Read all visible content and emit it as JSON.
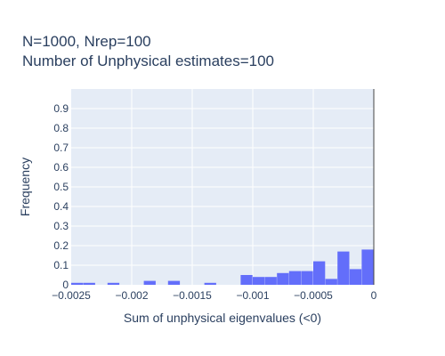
{
  "chart_data": {
    "type": "bar",
    "subtype": "histogram",
    "title_lines": [
      "N=1000, Nrep=100",
      "Number of Unphysical estimates=100"
    ],
    "xlabel": "Sum of unphysical eigenvalues (<0)",
    "ylabel": "Frequency",
    "xlim": [
      -0.0025,
      0
    ],
    "ylim": [
      0,
      1
    ],
    "x_ticks": [
      {
        "value": -0.0025,
        "label": "−0.0025"
      },
      {
        "value": -0.002,
        "label": "−0.002"
      },
      {
        "value": -0.0015,
        "label": "−0.0015"
      },
      {
        "value": -0.001,
        "label": "−0.001"
      },
      {
        "value": -0.0005,
        "label": "−0.0005"
      },
      {
        "value": 0,
        "label": "0"
      }
    ],
    "y_ticks": [
      {
        "value": 0,
        "label": "0"
      },
      {
        "value": 0.1,
        "label": "0.1"
      },
      {
        "value": 0.2,
        "label": "0.2"
      },
      {
        "value": 0.3,
        "label": "0.3"
      },
      {
        "value": 0.4,
        "label": "0.4"
      },
      {
        "value": 0.5,
        "label": "0.5"
      },
      {
        "value": 0.6,
        "label": "0.6"
      },
      {
        "value": 0.7,
        "label": "0.7"
      },
      {
        "value": 0.8,
        "label": "0.8"
      },
      {
        "value": 0.9,
        "label": "0.9"
      }
    ],
    "bin_width": 0.0001,
    "bins_x0": [
      -0.0025,
      -0.0024,
      -0.0023,
      -0.0022,
      -0.0021,
      -0.002,
      -0.0019,
      -0.0018,
      -0.0017,
      -0.0016,
      -0.0015,
      -0.0014,
      -0.0013,
      -0.0012,
      -0.0011,
      -0.001,
      -0.0009,
      -0.0008,
      -0.0007,
      -0.0006,
      -0.0005,
      -0.0004,
      -0.0003,
      -0.0002,
      -0.0001
    ],
    "values": [
      0.01,
      0.01,
      0,
      0.01,
      0,
      0,
      0.02,
      0,
      0.02,
      0,
      0,
      0.01,
      0,
      0,
      0.05,
      0.04,
      0.04,
      0.06,
      0.07,
      0.07,
      0.12,
      0.03,
      0.17,
      0.08,
      0.18
    ],
    "grid": true,
    "colors": {
      "bar": "#636efa",
      "plot_bg": "#e5ecf6",
      "grid": "#ffffff",
      "text": "#2a3f5f",
      "zero_line": "#444444"
    }
  }
}
